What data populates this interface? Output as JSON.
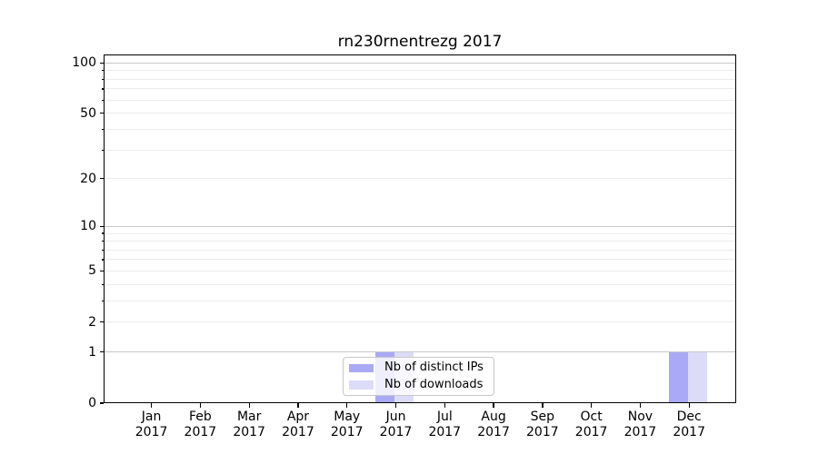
{
  "title": "rn230rnentrezg 2017",
  "chart_data": {
    "type": "bar",
    "title": "rn230rnentrezg 2017",
    "categories": [
      "Jan",
      "Feb",
      "Mar",
      "Apr",
      "May",
      "Jun",
      "Jul",
      "Aug",
      "Sep",
      "Oct",
      "Nov",
      "Dec"
    ],
    "year": "2017",
    "series": [
      {
        "name": "Nb of distinct IPs",
        "color": "#a9a9f5",
        "values": [
          0,
          0,
          0,
          0,
          0,
          1,
          0,
          0,
          0,
          0,
          0,
          1
        ]
      },
      {
        "name": "Nb of downloads",
        "color": "#dcdcf8",
        "values": [
          0,
          0,
          0,
          0,
          0,
          1,
          0,
          0,
          0,
          0,
          0,
          1
        ]
      }
    ],
    "xlabel": "",
    "ylabel": "",
    "yscale": "log1p",
    "ylim": [
      0,
      111
    ],
    "yticks": [
      {
        "label": "100",
        "value": 100
      },
      {
        "label": "50",
        "value": 50
      },
      {
        "label": "20",
        "value": 20
      },
      {
        "label": "10",
        "value": 10
      },
      {
        "label": "5",
        "value": 5
      },
      {
        "label": "2",
        "value": 2
      },
      {
        "label": "1",
        "value": 1
      },
      {
        "label": "0",
        "value": 0
      }
    ],
    "y_major_gridlines": [
      1,
      10,
      100
    ],
    "y_minor_gridlines": [
      2,
      3,
      4,
      5,
      6,
      7,
      8,
      9,
      20,
      30,
      40,
      50,
      60,
      70,
      80,
      90
    ],
    "grid": "horizontal",
    "legend_position": "lower-center-inside",
    "colors": {
      "bar_distinct_ips": "#a9a9f5",
      "bar_downloads": "#dcdcf8",
      "grid_major": "#c9c9c9",
      "grid_minor": "#ececec",
      "axis": "#000000",
      "background": "#ffffff"
    }
  }
}
